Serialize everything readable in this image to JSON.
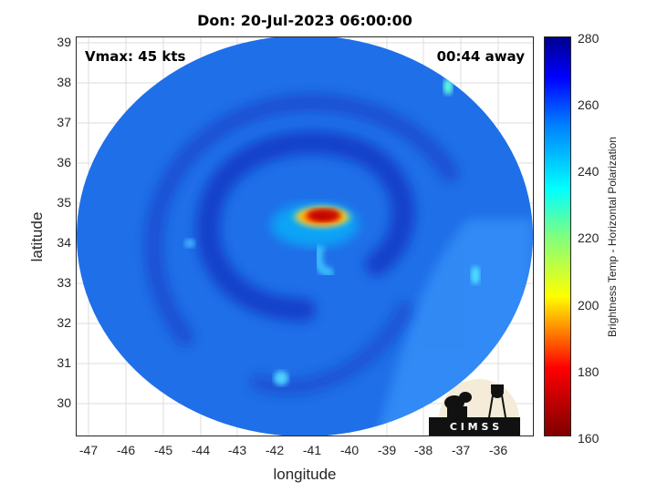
{
  "map": {
    "title": "Don: 20-Jul-2023 06:00:00",
    "vmax_text": "Vmax: 45 kts",
    "away_text": "00:44 away",
    "xlabel": "longitude",
    "ylabel": "latitude",
    "x_ticks": [
      "-47",
      "-46",
      "-45",
      "-44",
      "-43",
      "-42",
      "-41",
      "-40",
      "-39",
      "-38",
      "-37",
      "-36"
    ],
    "y_ticks": [
      "39",
      "38",
      "37",
      "36",
      "35",
      "34",
      "33",
      "32",
      "31",
      "30"
    ],
    "xlim": [
      -47.3,
      -35.3
    ],
    "ylim": [
      29.2,
      39.2
    ]
  },
  "colorbar": {
    "label": "Brightness Temp - Horizontal Polarization",
    "ticks": [
      "280",
      "260",
      "240",
      "220",
      "200",
      "180",
      "160"
    ],
    "range": [
      160,
      280
    ],
    "colormap": "jet"
  },
  "logo": {
    "text": "C I M S S"
  }
}
